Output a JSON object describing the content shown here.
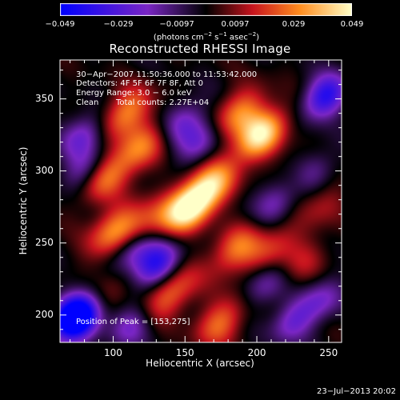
{
  "colorbar": {
    "tick_labels": [
      "−0.049",
      "−0.029",
      "−0.0097",
      "0.0097",
      "0.029",
      "0.049"
    ],
    "units_prefix": "(photons cm",
    "units_exp1": "−2",
    "units_mid": " s",
    "units_exp2": "−1",
    "units_mid2": " asec",
    "units_exp3": "−2",
    "units_suffix": ")"
  },
  "info": {
    "time_range": "30−Apr−2007 11:50:36.000 to 11:53:42.000",
    "detectors": "Detectors: 4F 5F 6F 7F 8F, Att 0",
    "energy": "Energy Range: 3.0 − 6.0 keV",
    "clean": "Clean",
    "counts": "Total counts: 2.27E+04",
    "peak": "Position of Peak = [153,275]"
  },
  "timestamp": "23−Jul−2013 20:02",
  "colors": {
    "neg_max": "#0000ff",
    "neg_mid": "#7a26c4",
    "zero": "#000000",
    "pos_low": "#c8141e",
    "pos_mid": "#ff8c1e",
    "pos_max": "#ffffc8"
  },
  "chart_data": {
    "type": "heatmap",
    "title": "Reconstructed RHESSI Image",
    "xlabel": "Heliocentric X (arcsec)",
    "ylabel": "Heliocentric Y (arcsec)",
    "xlim": [
      63,
      259
    ],
    "ylim": [
      181,
      377
    ],
    "x_ticks": [
      100,
      150,
      200,
      250
    ],
    "y_ticks": [
      200,
      250,
      300,
      350
    ],
    "color_range": [
      -0.049,
      0.049
    ],
    "peak_position": [
      153,
      275
    ],
    "emission_sources": [
      {
        "x": 153,
        "y": 275,
        "value": 0.049
      },
      {
        "x": 168,
        "y": 290,
        "value": 0.032
      },
      {
        "x": 203,
        "y": 325,
        "value": 0.045
      },
      {
        "x": 187,
        "y": 340,
        "value": 0.028
      },
      {
        "x": 108,
        "y": 340,
        "value": 0.03
      },
      {
        "x": 118,
        "y": 315,
        "value": 0.026
      },
      {
        "x": 93,
        "y": 295,
        "value": 0.026
      },
      {
        "x": 100,
        "y": 258,
        "value": 0.03
      },
      {
        "x": 123,
        "y": 262,
        "value": 0.022
      },
      {
        "x": 185,
        "y": 245,
        "value": 0.026
      },
      {
        "x": 210,
        "y": 245,
        "value": 0.018
      },
      {
        "x": 140,
        "y": 215,
        "value": 0.028
      },
      {
        "x": 175,
        "y": 195,
        "value": 0.026
      },
      {
        "x": 225,
        "y": 290,
        "value": 0.014
      },
      {
        "x": 245,
        "y": 275,
        "value": 0.012
      },
      {
        "x": 103,
        "y": 222,
        "value": 0.012
      },
      {
        "x": 232,
        "y": 235,
        "value": 0.012
      }
    ],
    "negative_regions": [
      {
        "x": 73,
        "y": 200,
        "value": -0.049
      },
      {
        "x": 75,
        "y": 195,
        "value": -0.03
      },
      {
        "x": 130,
        "y": 235,
        "value": -0.04
      },
      {
        "x": 115,
        "y": 245,
        "value": -0.03
      },
      {
        "x": 248,
        "y": 352,
        "value": -0.04
      },
      {
        "x": 80,
        "y": 300,
        "value": -0.02
      },
      {
        "x": 80,
        "y": 325,
        "value": -0.025
      },
      {
        "x": 160,
        "y": 320,
        "value": -0.022
      },
      {
        "x": 150,
        "y": 335,
        "value": -0.02
      },
      {
        "x": 215,
        "y": 280,
        "value": -0.028
      },
      {
        "x": 205,
        "y": 220,
        "value": -0.02
      },
      {
        "x": 240,
        "y": 300,
        "value": -0.018
      },
      {
        "x": 225,
        "y": 195,
        "value": -0.022
      },
      {
        "x": 112,
        "y": 192,
        "value": -0.02
      },
      {
        "x": 245,
        "y": 210,
        "value": -0.02
      }
    ]
  }
}
